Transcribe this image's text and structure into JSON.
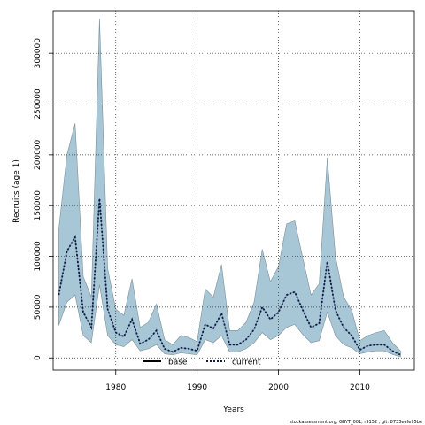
{
  "chart_data": {
    "type": "area",
    "xlabel": "Years",
    "ylabel": "Recruits (age 1)",
    "xlim": [
      1972.3,
      2016.7
    ],
    "ylim": [
      -12000,
      342000
    ],
    "x_ticks": [
      1980,
      1990,
      2000,
      2010
    ],
    "y_ticks": [
      0,
      50000,
      100000,
      150000,
      200000,
      250000,
      300000
    ],
    "grid": true,
    "legend_position": "bottom-center",
    "legend": [
      {
        "label": "base",
        "style": "solid",
        "color": "#000000"
      },
      {
        "label": "current",
        "style": "dotted",
        "color": "#0a1a4a"
      }
    ],
    "footer": "stockassessment.org, GBYT_001, r9152 , git: 8733eefe95be",
    "series": [
      {
        "name": "current",
        "color": "#0a1a4a",
        "band_color": "#a7c6d6",
        "x": [
          1973,
          1974,
          1975,
          1976,
          1977,
          1978,
          1979,
          1980,
          1981,
          1982,
          1983,
          1984,
          1985,
          1986,
          1987,
          1988,
          1989,
          1990,
          1991,
          1992,
          1993,
          1994,
          1995,
          1996,
          1997,
          1998,
          1999,
          2000,
          2001,
          2002,
          2003,
          2004,
          2005,
          2006,
          2007,
          2008,
          2009,
          2010,
          2011,
          2012,
          2013,
          2014,
          2015
        ],
        "y": [
          62000,
          105000,
          119000,
          45000,
          30000,
          157000,
          48000,
          25000,
          21000,
          38000,
          14000,
          18000,
          27000,
          9000,
          6000,
          10000,
          9000,
          7000,
          33000,
          29000,
          44000,
          13000,
          13000,
          18000,
          28000,
          50000,
          38000,
          45000,
          62000,
          65000,
          47000,
          30000,
          34000,
          95000,
          47000,
          30000,
          22000,
          8000,
          12000,
          13000,
          13000,
          7000,
          3000
        ],
        "lower": [
          32000,
          55000,
          62000,
          22000,
          15000,
          72000,
          22000,
          13000,
          11000,
          18000,
          7000,
          9000,
          13000,
          4000,
          3000,
          5000,
          4000,
          3000,
          18000,
          15000,
          22000,
          6000,
          6000,
          9000,
          15000,
          25000,
          18000,
          22000,
          30000,
          33000,
          23000,
          15000,
          17000,
          45000,
          22000,
          13000,
          10000,
          4000,
          6000,
          7000,
          7000,
          3500,
          1000
        ],
        "upper": [
          127000,
          200000,
          231000,
          80000,
          60000,
          334000,
          88000,
          48000,
          42000,
          78000,
          30000,
          35000,
          53000,
          18000,
          13000,
          22000,
          20000,
          16000,
          68000,
          60000,
          92000,
          27000,
          27000,
          35000,
          55000,
          107000,
          75000,
          90000,
          132000,
          135000,
          98000,
          62000,
          73000,
          197000,
          100000,
          60000,
          47000,
          17000,
          22000,
          25000,
          27000,
          15000,
          7000
        ]
      },
      {
        "name": "base",
        "color": "#000000",
        "x": [
          1973,
          1974,
          1975,
          1976,
          1977,
          1978,
          1979,
          1980,
          1981,
          1982,
          1983,
          1984,
          1985,
          1986,
          1987,
          1988,
          1989,
          1990,
          1991,
          1992,
          1993,
          1994,
          1995,
          1996,
          1997,
          1998,
          1999,
          2000,
          2001,
          2002,
          2003,
          2004,
          2005,
          2006,
          2007,
          2008,
          2009,
          2010,
          2011,
          2012,
          2013,
          2014,
          2015
        ],
        "y": [
          62000,
          105000,
          119000,
          45000,
          30000,
          157000,
          48000,
          25000,
          21000,
          38000,
          14000,
          18000,
          27000,
          9000,
          6000,
          10000,
          9000,
          7000,
          33000,
          29000,
          44000,
          13000,
          13000,
          18000,
          28000,
          50000,
          38000,
          45000,
          62000,
          65000,
          47000,
          30000,
          34000,
          95000,
          47000,
          30000,
          22000,
          8000,
          12000,
          13000,
          13000,
          7000,
          3000
        ]
      }
    ]
  }
}
